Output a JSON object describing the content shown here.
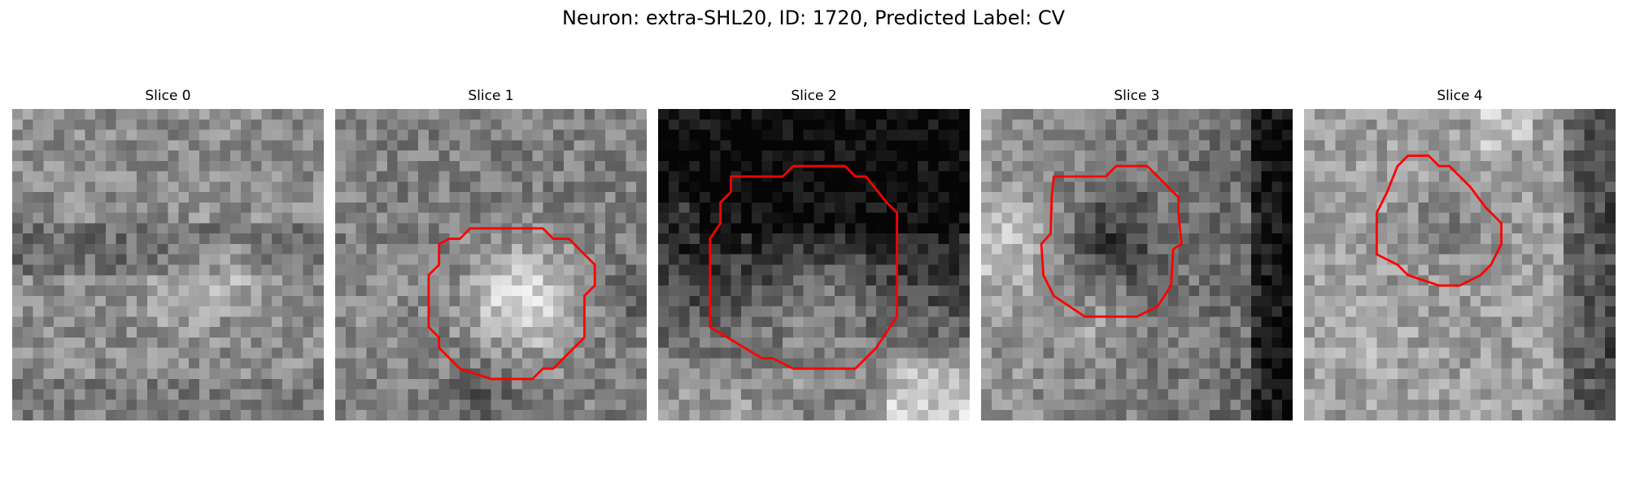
{
  "figure_title": "Neuron: extra-SHL20, ID: 1720, Predicted Label: CV",
  "contour_color": "#ff0000",
  "slices": [
    {
      "title": "Slice 0",
      "has_contour": false
    },
    {
      "title": "Slice 1",
      "has_contour": true
    },
    {
      "title": "Slice 2",
      "has_contour": true
    },
    {
      "title": "Slice 3",
      "has_contour": true
    },
    {
      "title": "Slice 4",
      "has_contour": true
    }
  ]
}
